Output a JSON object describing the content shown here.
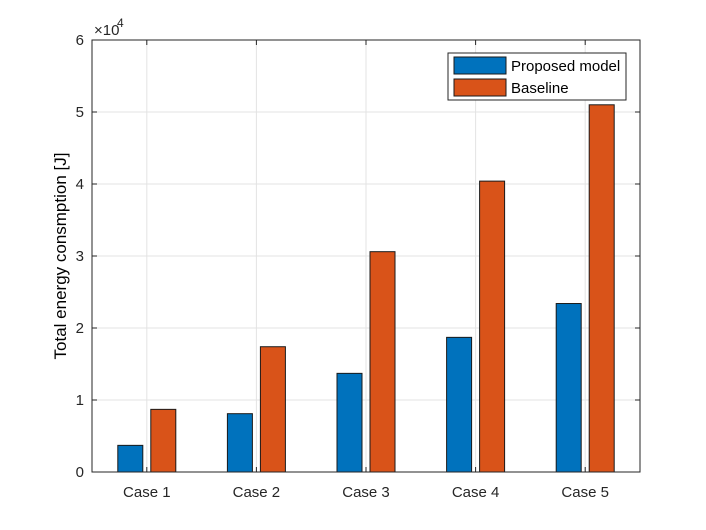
{
  "chart_data": {
    "type": "bar",
    "title": "",
    "xlabel": "",
    "ylabel": "Total energy consmption [J]",
    "categories": [
      "Case 1",
      "Case 2",
      "Case 3",
      "Case 4",
      "Case 5"
    ],
    "series": [
      {
        "name": "Proposed model",
        "color": "#0072BD",
        "values": [
          3700,
          8100,
          13700,
          18700,
          23400
        ]
      },
      {
        "name": "Baseline",
        "color": "#D95319",
        "values": [
          8700,
          17400,
          30600,
          40400,
          51000
        ]
      }
    ],
    "ylim": [
      0,
      60000
    ],
    "yticks": [
      0,
      10000,
      20000,
      30000,
      40000,
      50000,
      60000
    ],
    "ytick_labels": [
      "0",
      "1",
      "2",
      "3",
      "4",
      "5",
      "6"
    ],
    "y_exponent": {
      "prefix": "×10",
      "power": "4"
    },
    "grid": true,
    "legend_position": "top-right"
  }
}
